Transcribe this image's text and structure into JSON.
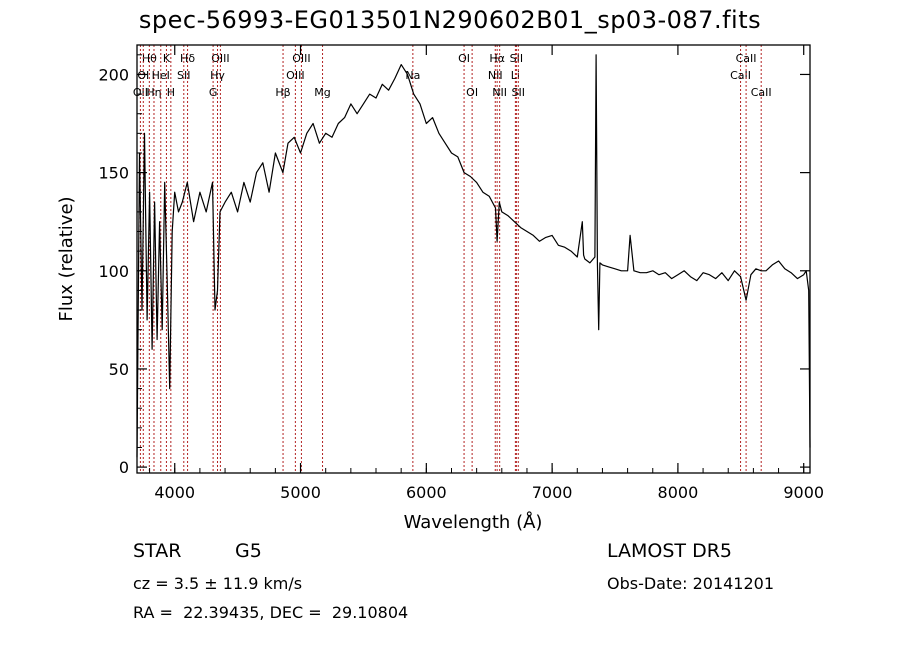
{
  "chart_data": {
    "type": "line",
    "title": "spec-56993-EG013501N290602B01_sp03-087.fits",
    "xlabel": "Wavelength (Å)",
    "ylabel": "Flux (relative)",
    "xlim": [
      3700,
      9050
    ],
    "ylim": [
      -3,
      215
    ],
    "xticks": [
      4000,
      5000,
      6000,
      7000,
      8000,
      9000
    ],
    "yticks": [
      0,
      50,
      100,
      150,
      200
    ],
    "grid": false,
    "series": [
      {
        "x": [
          3700,
          3720,
          3740,
          3760,
          3780,
          3800,
          3820,
          3840,
          3860,
          3880,
          3900,
          3920,
          3940,
          3960,
          3980,
          4000,
          4030,
          4060,
          4100,
          4150,
          4200,
          4250,
          4300,
          4320,
          4340,
          4360,
          4400,
          4450,
          4500,
          4550,
          4600,
          4650,
          4700,
          4750,
          4800,
          4860,
          4900,
          4950,
          5000,
          5050,
          5100,
          5150,
          5200,
          5250,
          5300,
          5350,
          5400,
          5450,
          5500,
          5550,
          5600,
          5650,
          5700,
          5750,
          5800,
          5850,
          5900,
          5950,
          6000,
          6050,
          6100,
          6150,
          6200,
          6250,
          6300,
          6350,
          6400,
          6450,
          6500,
          6550,
          6563,
          6580,
          6600,
          6650,
          6700,
          6750,
          6800,
          6850,
          6900,
          6950,
          7000,
          7050,
          7100,
          7150,
          7200,
          7240,
          7250,
          7260,
          7300,
          7340,
          7350,
          7360,
          7370,
          7380,
          7400,
          7450,
          7500,
          7550,
          7600,
          7620,
          7650,
          7700,
          7750,
          7800,
          7850,
          7900,
          7950,
          8000,
          8050,
          8100,
          8150,
          8200,
          8250,
          8300,
          8350,
          8400,
          8450,
          8498,
          8542,
          8580,
          8620,
          8662,
          8700,
          8750,
          8800,
          8850,
          8900,
          8950,
          9000,
          9020,
          9040,
          9050
        ],
        "values": [
          5,
          160,
          80,
          170,
          75,
          140,
          60,
          135,
          65,
          125,
          70,
          145,
          95,
          40,
          120,
          140,
          130,
          135,
          145,
          125,
          140,
          130,
          145,
          80,
          90,
          130,
          135,
          140,
          130,
          145,
          135,
          150,
          155,
          140,
          160,
          150,
          165,
          168,
          160,
          170,
          175,
          165,
          170,
          168,
          175,
          178,
          185,
          180,
          185,
          190,
          188,
          195,
          192,
          198,
          205,
          200,
          190,
          185,
          175,
          178,
          170,
          165,
          160,
          158,
          150,
          148,
          145,
          140,
          138,
          132,
          115,
          135,
          130,
          128,
          125,
          122,
          120,
          118,
          115,
          117,
          118,
          113,
          112,
          110,
          107,
          125,
          108,
          106,
          104,
          107,
          210,
          104,
          70,
          104,
          103,
          102,
          101,
          100,
          100,
          118,
          100,
          99,
          99,
          100,
          98,
          99,
          96,
          98,
          100,
          97,
          95,
          99,
          98,
          96,
          99,
          95,
          100,
          97,
          85,
          98,
          101,
          100,
          100,
          103,
          105,
          101,
          99,
          96,
          98,
          100,
          90,
          10
        ]
      }
    ],
    "lines": [
      {
        "label": "OII",
        "x": 3727,
        "row": 3
      },
      {
        "label": "Hθ",
        "x": 3798,
        "row": 1
      },
      {
        "label": "Hη",
        "x": 3835,
        "row": 3
      },
      {
        "label": "OI",
        "x": 3750,
        "row": 2
      },
      {
        "label": "HeI",
        "x": 3889,
        "row": 2
      },
      {
        "label": "K",
        "x": 3934,
        "row": 1
      },
      {
        "label": "H",
        "x": 3969,
        "row": 3
      },
      {
        "label": "Hδ",
        "x": 4102,
        "row": 1
      },
      {
        "label": "SII",
        "x": 4072,
        "row": 2
      },
      {
        "label": "OIII",
        "x": 4363,
        "row": 1
      },
      {
        "label": "Hγ",
        "x": 4340,
        "row": 2
      },
      {
        "label": "G",
        "x": 4305,
        "row": 3
      },
      {
        "label": "Hβ",
        "x": 4861,
        "row": 3
      },
      {
        "label": "OIII",
        "x": 4959,
        "row": 2
      },
      {
        "label": "OIII",
        "x": 5007,
        "row": 1
      },
      {
        "label": "Mg",
        "x": 5175,
        "row": 3
      },
      {
        "label": "Na",
        "x": 5893,
        "row": 2
      },
      {
        "label": "OI",
        "x": 6300,
        "row": 1
      },
      {
        "label": "OI",
        "x": 6364,
        "row": 3
      },
      {
        "label": "NII",
        "x": 6548,
        "row": 2
      },
      {
        "label": "Hα",
        "x": 6563,
        "row": 1
      },
      {
        "label": "NII",
        "x": 6583,
        "row": 3
      },
      {
        "label": "Li",
        "x": 6708,
        "row": 2
      },
      {
        "label": "SII",
        "x": 6716,
        "row": 1
      },
      {
        "label": "SII",
        "x": 6731,
        "row": 3
      },
      {
        "label": "CaII",
        "x": 8498,
        "row": 2
      },
      {
        "label": "CaII",
        "x": 8542,
        "row": 1
      },
      {
        "label": "CaII",
        "x": 8662,
        "row": 3
      }
    ]
  },
  "info": {
    "class_label": "STAR",
    "subclass": "G5",
    "survey": "LAMOST DR5",
    "cz": "cz = 3.5 ± 11.9 km/s",
    "obs_date": "Obs-Date: 20141201",
    "radec": "RA =  22.39435, DEC =  29.10804"
  },
  "colors": {
    "line_marker": "#b22222",
    "spectrum": "#000000",
    "axes": "#000000"
  }
}
